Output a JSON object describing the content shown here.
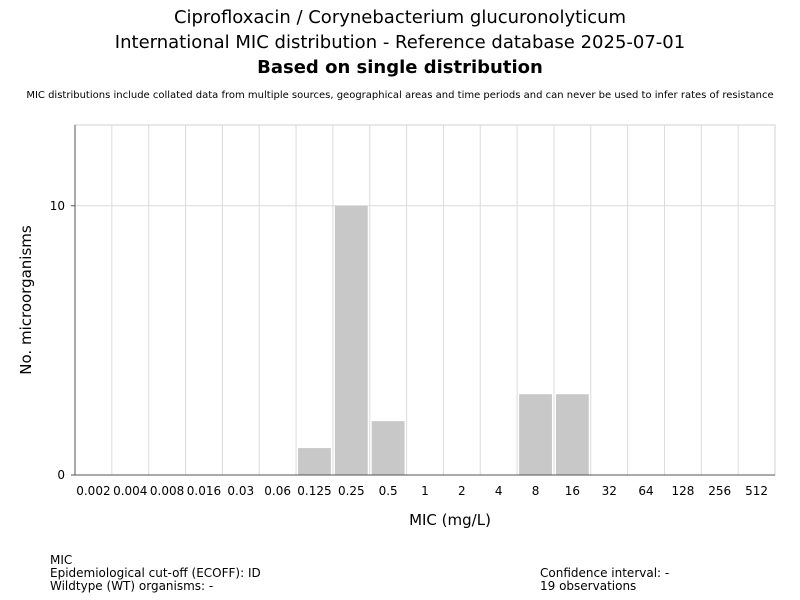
{
  "title_line1": "Ciprofloxacin / Corynebacterium glucuronolyticum",
  "title_line2": "International MIC distribution - Reference database 2025-07-01",
  "title_line3": "Based on single distribution",
  "disclaimer": "MIC distributions include collated data from multiple sources, geographical areas and time periods and can never be used to infer rates of resistance",
  "footer": {
    "mic_label": "MIC",
    "ecoff": "Epidemiological cut-off (ECOFF): ID",
    "wildtype": "Wildtype (WT) organisms:  -",
    "confidence": "Confidence interval: -",
    "observations": "19 observations"
  },
  "chart_data": {
    "type": "bar",
    "xlabel": "MIC (mg/L)",
    "ylabel": "No. microorganisms",
    "categories": [
      "0.002",
      "0.004",
      "0.008",
      "0.016",
      "0.03",
      "0.06",
      "0.125",
      "0.25",
      "0.5",
      "1",
      "2",
      "4",
      "8",
      "16",
      "32",
      "64",
      "128",
      "256",
      "512"
    ],
    "values": [
      0,
      0,
      0,
      0,
      0,
      0,
      1,
      10,
      2,
      0,
      0,
      0,
      3,
      3,
      0,
      0,
      0,
      0,
      0
    ],
    "yticks": [
      "0",
      "10"
    ],
    "ylim": [
      0,
      13
    ],
    "bar_color": "#c8c8c8",
    "grid": true
  }
}
